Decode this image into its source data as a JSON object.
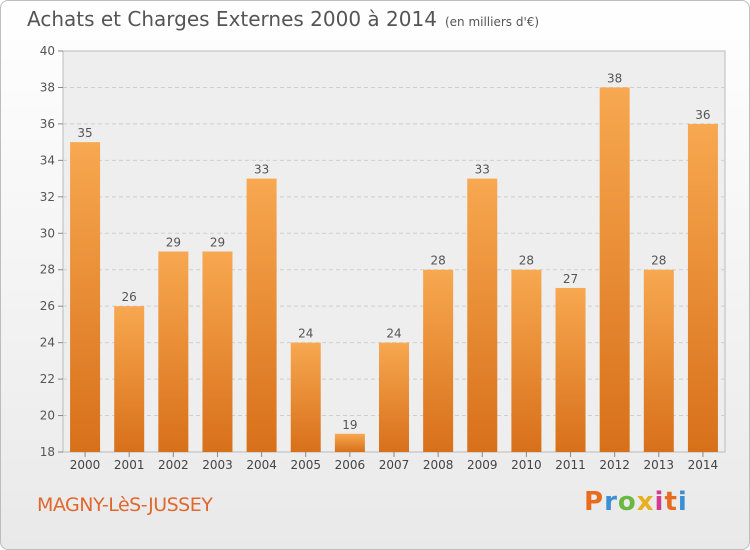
{
  "chart_data": {
    "type": "bar",
    "title": "Achats et Charges Externes 2000 à 2014",
    "unit_label": "(en milliers d'€)",
    "xlabel": "",
    "ylabel": "",
    "ylim": [
      18,
      40
    ],
    "yticks": [
      18,
      20,
      22,
      24,
      26,
      28,
      30,
      32,
      34,
      36,
      38,
      40
    ],
    "grid": true,
    "categories": [
      "2000",
      "2001",
      "2002",
      "2003",
      "2004",
      "2005",
      "2006",
      "2007",
      "2008",
      "2009",
      "2010",
      "2011",
      "2012",
      "2013",
      "2014"
    ],
    "values": [
      35,
      26,
      29,
      29,
      33,
      24,
      19,
      24,
      28,
      33,
      28,
      27,
      38,
      28,
      36
    ],
    "bar_color_top": "#f7a850",
    "bar_color_bottom": "#d8701a"
  },
  "footer": {
    "commune": "MAGNY-LèS-JUSSEY",
    "brand": "Proxiti",
    "brand_colors": [
      "#e86c1e",
      "#3b8fd6",
      "#6ab83f",
      "#e8b020",
      "#d23b8e",
      "#e86c1e",
      "#3b8fd6"
    ]
  }
}
